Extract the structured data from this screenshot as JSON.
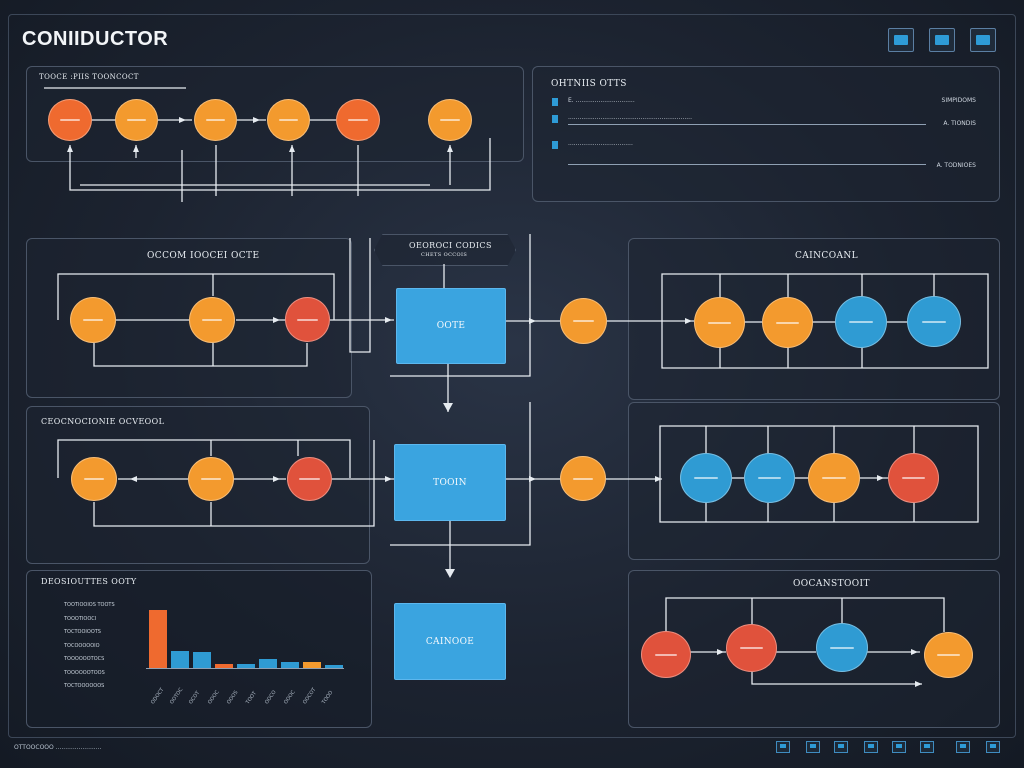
{
  "app": {
    "title": "CONIIDUCTOR"
  },
  "toolbar": {
    "icons": [
      "window-icon",
      "window-icon",
      "window-icon"
    ]
  },
  "panels": {
    "top_left": {
      "title": "TOOCE :PIIS TOONCOCT"
    },
    "outputs": {
      "title": "OHTNIIS OTTS",
      "rows": [
        {
          "text": "E. ...............................",
          "value": "SIMPIDOMS"
        },
        {
          "text": ".................................................................",
          "value": "A. TIONDIS"
        },
        {
          "text": "..................................",
          "value": "A. TODNIOES"
        }
      ]
    },
    "left_mid": {
      "title": "OCCOM IOOCEI OCTE"
    },
    "center_head": {
      "title": "OEOROCI CODICS",
      "subtitle": "CHETS OCCOIS"
    },
    "right_mid": {
      "title": "CAINCOANL"
    },
    "left_lower": {
      "title": "CEOCNOCIONIE OCVEOOL"
    },
    "stats": {
      "title": "DEOSIOUTTES OOTY",
      "labels": [
        "TOOTIOOIOS TOOTS",
        "TOOOTIOOCI",
        "TOCTOOIOOTS",
        "TOCOOOOOIO",
        "TOOOOOOTOCS",
        "TOOOOOOTOOS",
        "TOCTOOOOOOS"
      ],
      "ticks": [
        "ODOCT",
        "OOTOC",
        "OCOT",
        "OOOC",
        "OOOS",
        "TOOT",
        "OOCO",
        "OOOC",
        "OOCOT",
        "TOOO"
      ]
    },
    "right_bottom": {
      "title": "OOCANSTOOIT"
    }
  },
  "boxes": {
    "top": "OOTE",
    "mid": "TOOIN",
    "bottom": "CAINOOE"
  },
  "footer": {
    "status": "OTTOOCOOO ........................"
  },
  "colors": {
    "orange": "#f39a2e",
    "red": "#e0523c",
    "blue": "#2f9bd3",
    "box": "#3aa4e0"
  },
  "chart_data": {
    "type": "bar",
    "categories": [
      "1",
      "2",
      "3",
      "4",
      "5",
      "6",
      "7",
      "8",
      "9"
    ],
    "values": [
      54,
      16,
      15,
      4,
      4,
      8,
      6,
      6,
      3
    ],
    "colors": [
      "#ef6a2f",
      "#2f9bd3",
      "#2f9bd3",
      "#ef6a2f",
      "#2f9bd3",
      "#2f9bd3",
      "#2f9bd3",
      "#f39a2e",
      "#2f9bd3"
    ],
    "ylim": [
      0,
      60
    ]
  }
}
